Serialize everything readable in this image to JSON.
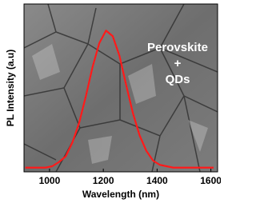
{
  "chart_data": {
    "type": "line",
    "x_label": "Wavelength (nm)",
    "y_label": "PL Intensity (a.u)",
    "annotation": [
      "Perovskite",
      "+",
      "QDs"
    ],
    "x": [
      910,
      935,
      960,
      985,
      1010,
      1035,
      1060,
      1085,
      1110,
      1135,
      1160,
      1185,
      1210,
      1235,
      1260,
      1285,
      1310,
      1335,
      1360,
      1385,
      1410,
      1435,
      1460,
      1485,
      1510,
      1535,
      1560,
      1585,
      1610
    ],
    "series": [
      {
        "color": "#ff1a1a",
        "values": [
          0.03,
          0.03,
          0.03,
          0.03,
          0.04,
          0.07,
          0.11,
          0.21,
          0.35,
          0.54,
          0.75,
          0.92,
          1.01,
          0.97,
          0.83,
          0.62,
          0.42,
          0.26,
          0.15,
          0.08,
          0.05,
          0.04,
          0.03,
          0.03,
          0.03,
          0.03,
          0.03,
          0.03,
          0.03
        ]
      }
    ],
    "xlim": [
      905,
      1625
    ],
    "xticks": [
      1000,
      1200,
      1400,
      1600
    ],
    "ylim": [
      0,
      1.2
    ]
  }
}
